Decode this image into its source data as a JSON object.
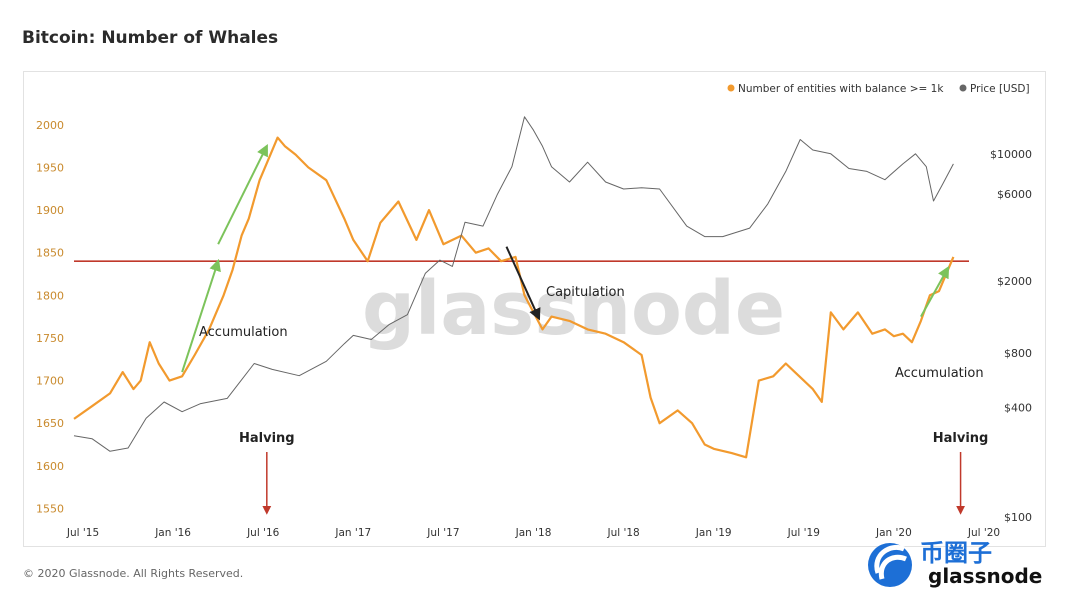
{
  "title": "Bitcoin: Number of Whales",
  "footer": "© 2020 Glassnode. All Rights Reserved.",
  "watermark": "glassnode",
  "logo": {
    "brand_cn": "币圈子",
    "brand_en": "glassnode"
  },
  "chart_data": {
    "type": "line",
    "title": "Bitcoin: Number of Whales",
    "xlabel": "",
    "ylabel": "",
    "x_ticks": [
      "Jul '15",
      "Jan '16",
      "Jul '16",
      "Jan '17",
      "Jul '17",
      "Jan '18",
      "Jul '18",
      "Jan '19",
      "Jul '19",
      "Jan '20",
      "Jul '20"
    ],
    "x_range": [
      2015.45,
      2020.5
    ],
    "y_left": {
      "ticks": [
        1550,
        1600,
        1650,
        1700,
        1750,
        1800,
        1850,
        1900,
        1950,
        2000
      ],
      "range": [
        1540,
        2015
      ]
    },
    "y_right": {
      "ticks": [
        "$100",
        "$400",
        "$800",
        "$2000",
        "$6000",
        "$10000"
      ],
      "tick_values": [
        100,
        400,
        800,
        2000,
        6000,
        10000
      ],
      "scale": "log"
    },
    "legend": [
      {
        "label": "Number of entities with balance >= 1k",
        "color": "#f29a2e"
      },
      {
        "label": "Price [USD]",
        "color": "#666666"
      }
    ],
    "series": [
      {
        "name": "Number of entities with balance >= 1k",
        "axis": "left",
        "color": "#f29a2e",
        "points": [
          [
            2015.45,
            1655
          ],
          [
            2015.55,
            1670
          ],
          [
            2015.65,
            1685
          ],
          [
            2015.72,
            1710
          ],
          [
            2015.78,
            1690
          ],
          [
            2015.82,
            1700
          ],
          [
            2015.87,
            1745
          ],
          [
            2015.92,
            1720
          ],
          [
            2015.98,
            1700
          ],
          [
            2016.05,
            1705
          ],
          [
            2016.12,
            1730
          ],
          [
            2016.2,
            1760
          ],
          [
            2016.28,
            1800
          ],
          [
            2016.33,
            1830
          ],
          [
            2016.38,
            1870
          ],
          [
            2016.42,
            1890
          ],
          [
            2016.48,
            1935
          ],
          [
            2016.53,
            1960
          ],
          [
            2016.58,
            1985
          ],
          [
            2016.62,
            1975
          ],
          [
            2016.68,
            1965
          ],
          [
            2016.75,
            1950
          ],
          [
            2016.85,
            1935
          ],
          [
            2016.95,
            1890
          ],
          [
            2017.0,
            1865
          ],
          [
            2017.08,
            1840
          ],
          [
            2017.15,
            1885
          ],
          [
            2017.25,
            1910
          ],
          [
            2017.35,
            1865
          ],
          [
            2017.42,
            1900
          ],
          [
            2017.5,
            1860
          ],
          [
            2017.6,
            1870
          ],
          [
            2017.68,
            1850
          ],
          [
            2017.75,
            1855
          ],
          [
            2017.82,
            1840
          ],
          [
            2017.9,
            1845
          ],
          [
            2017.95,
            1800
          ],
          [
            2018.0,
            1780
          ],
          [
            2018.05,
            1760
          ],
          [
            2018.1,
            1775
          ],
          [
            2018.2,
            1770
          ],
          [
            2018.3,
            1760
          ],
          [
            2018.4,
            1755
          ],
          [
            2018.5,
            1745
          ],
          [
            2018.6,
            1730
          ],
          [
            2018.65,
            1680
          ],
          [
            2018.7,
            1650
          ],
          [
            2018.8,
            1665
          ],
          [
            2018.88,
            1650
          ],
          [
            2018.95,
            1625
          ],
          [
            2019.0,
            1620
          ],
          [
            2019.1,
            1615
          ],
          [
            2019.18,
            1610
          ],
          [
            2019.25,
            1700
          ],
          [
            2019.33,
            1705
          ],
          [
            2019.4,
            1720
          ],
          [
            2019.45,
            1710
          ],
          [
            2019.5,
            1700
          ],
          [
            2019.55,
            1690
          ],
          [
            2019.6,
            1675
          ],
          [
            2019.65,
            1780
          ],
          [
            2019.72,
            1760
          ],
          [
            2019.8,
            1780
          ],
          [
            2019.88,
            1755
          ],
          [
            2019.95,
            1760
          ],
          [
            2020.0,
            1752
          ],
          [
            2020.05,
            1755
          ],
          [
            2020.1,
            1745
          ],
          [
            2020.15,
            1770
          ],
          [
            2020.2,
            1800
          ],
          [
            2020.25,
            1805
          ],
          [
            2020.3,
            1830
          ],
          [
            2020.33,
            1845
          ]
        ]
      },
      {
        "name": "Price [USD]",
        "axis": "right",
        "color": "#666666",
        "points": [
          [
            2015.45,
            280
          ],
          [
            2015.55,
            270
          ],
          [
            2015.65,
            230
          ],
          [
            2015.75,
            240
          ],
          [
            2015.85,
            350
          ],
          [
            2015.95,
            430
          ],
          [
            2016.05,
            380
          ],
          [
            2016.15,
            420
          ],
          [
            2016.3,
            450
          ],
          [
            2016.45,
            700
          ],
          [
            2016.55,
            650
          ],
          [
            2016.7,
            600
          ],
          [
            2016.85,
            720
          ],
          [
            2016.95,
            900
          ],
          [
            2017.0,
            1000
          ],
          [
            2017.1,
            950
          ],
          [
            2017.2,
            1150
          ],
          [
            2017.3,
            1300
          ],
          [
            2017.4,
            2200
          ],
          [
            2017.48,
            2600
          ],
          [
            2017.55,
            2400
          ],
          [
            2017.62,
            4200
          ],
          [
            2017.72,
            4000
          ],
          [
            2017.8,
            6000
          ],
          [
            2017.88,
            8500
          ],
          [
            2017.95,
            16000
          ],
          [
            2018.0,
            13500
          ],
          [
            2018.05,
            11000
          ],
          [
            2018.1,
            8500
          ],
          [
            2018.2,
            7000
          ],
          [
            2018.3,
            9000
          ],
          [
            2018.4,
            7000
          ],
          [
            2018.5,
            6400
          ],
          [
            2018.6,
            6500
          ],
          [
            2018.7,
            6400
          ],
          [
            2018.85,
            4000
          ],
          [
            2018.95,
            3500
          ],
          [
            2019.05,
            3500
          ],
          [
            2019.2,
            3900
          ],
          [
            2019.3,
            5300
          ],
          [
            2019.4,
            8000
          ],
          [
            2019.48,
            12000
          ],
          [
            2019.55,
            10500
          ],
          [
            2019.65,
            10000
          ],
          [
            2019.75,
            8300
          ],
          [
            2019.85,
            8000
          ],
          [
            2019.95,
            7200
          ],
          [
            2020.05,
            8800
          ],
          [
            2020.12,
            10000
          ],
          [
            2020.18,
            8500
          ],
          [
            2020.22,
            5500
          ],
          [
            2020.27,
            6800
          ],
          [
            2020.33,
            8800
          ]
        ]
      }
    ],
    "reference_line": {
      "axis": "left",
      "value": 1840,
      "color": "#c0392b"
    },
    "annotations": [
      {
        "text": "Accumulation",
        "arrow_color": "#7cc35b",
        "from": [
          2016.05,
          1710
        ],
        "to": [
          2016.25,
          1840
        ]
      },
      {
        "text": "Accumulation",
        "arrow_color": "#7cc35b",
        "from": [
          2016.25,
          1860
        ],
        "to": [
          2016.52,
          1975
        ]
      },
      {
        "text": "Capitulation",
        "arrow_color": "#222222",
        "from": [
          2017.85,
          1857
        ],
        "to": [
          2018.03,
          1773
        ]
      },
      {
        "text": "Accumulation",
        "arrow_color": "#7cc35b",
        "from": [
          2020.15,
          1775
        ],
        "to": [
          2020.3,
          1832
        ]
      },
      {
        "text": "Halving",
        "arrow_color": "#c0392b",
        "x": 2016.52
      },
      {
        "text": "Halving",
        "arrow_color": "#c0392b",
        "x": 2020.37
      }
    ]
  }
}
